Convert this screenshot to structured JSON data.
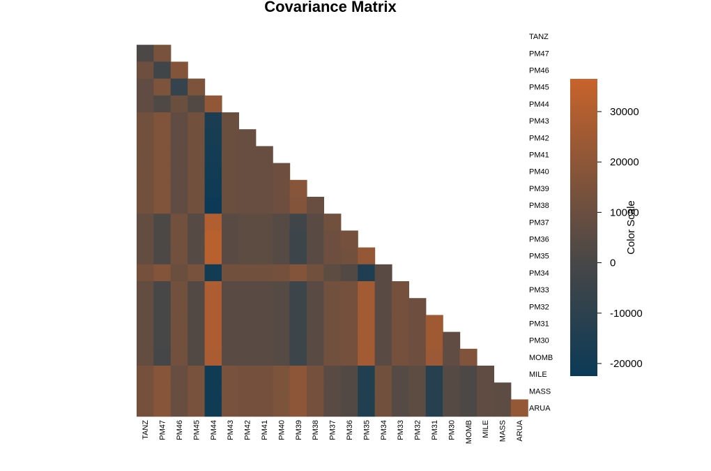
{
  "colors": {
    "low": "#0b3a56",
    "mid": "#474747",
    "high": "#c8632b"
  },
  "chart_data": {
    "type": "heatmap",
    "title": "Covariance Matrix",
    "colorbar_title": "Color Scale",
    "colorbar_range": [
      -22500,
      36500
    ],
    "colorbar_ticks": [
      -20000,
      -10000,
      0,
      10000,
      20000,
      30000
    ],
    "colorbar_tick_labels": [
      "-20000",
      "-10000",
      "0",
      "10000",
      "20000",
      "30000"
    ],
    "row_labels": [
      "TANZ",
      "PM47",
      "PM46",
      "PM45",
      "PM44",
      "PM43",
      "PM42",
      "PM41",
      "PM40",
      "PM39",
      "PM38",
      "PM37",
      "PM36",
      "PM35",
      "PM34",
      "PM33",
      "PM32",
      "PM31",
      "PM30",
      "MOMB",
      "MILE",
      "MASS",
      "ARUA"
    ],
    "column_labels": [
      "TANZ",
      "PM47",
      "PM46",
      "PM45",
      "PM44",
      "PM43",
      "PM42",
      "PM41",
      "PM40",
      "PM39",
      "PM38",
      "PM37",
      "PM36",
      "PM35",
      "PM34",
      "PM33",
      "PM32",
      "PM31",
      "PM30",
      "MOMB",
      "MILE",
      "MASS",
      "ARUA"
    ],
    "values": [
      [
        null,
        null,
        null,
        null,
        null,
        null,
        null,
        null,
        null,
        null,
        null,
        null,
        null,
        null,
        null,
        null,
        null,
        null,
        null,
        null,
        null,
        null,
        null
      ],
      [
        1000,
        14000,
        null,
        null,
        null,
        null,
        null,
        null,
        null,
        null,
        null,
        null,
        null,
        null,
        null,
        null,
        null,
        null,
        null,
        null,
        null,
        null,
        null
      ],
      [
        11000,
        -3000,
        17000,
        null,
        null,
        null,
        null,
        null,
        null,
        null,
        null,
        null,
        null,
        null,
        null,
        null,
        null,
        null,
        null,
        null,
        null,
        null,
        null
      ],
      [
        7000,
        15000,
        -7000,
        15000,
        null,
        null,
        null,
        null,
        null,
        null,
        null,
        null,
        null,
        null,
        null,
        null,
        null,
        null,
        null,
        null,
        null,
        null,
        null
      ],
      [
        7000,
        2000,
        10000,
        3000,
        21000,
        null,
        null,
        null,
        null,
        null,
        null,
        null,
        null,
        null,
        null,
        null,
        null,
        null,
        null,
        null,
        null,
        null,
        null
      ],
      [
        12000,
        16000,
        7000,
        12000,
        -17000,
        10000,
        null,
        null,
        null,
        null,
        null,
        null,
        null,
        null,
        null,
        null,
        null,
        null,
        null,
        null,
        null,
        null,
        null
      ],
      [
        12000,
        16000,
        7000,
        12000,
        -18000,
        10000,
        9000,
        null,
        null,
        null,
        null,
        null,
        null,
        null,
        null,
        null,
        null,
        null,
        null,
        null,
        null,
        null,
        null
      ],
      [
        12000,
        16000,
        7000,
        12000,
        -19000,
        10000,
        9000,
        9000,
        null,
        null,
        null,
        null,
        null,
        null,
        null,
        null,
        null,
        null,
        null,
        null,
        null,
        null,
        null
      ],
      [
        12000,
        16000,
        7000,
        12000,
        -20000,
        10000,
        9000,
        9000,
        11000,
        null,
        null,
        null,
        null,
        null,
        null,
        null,
        null,
        null,
        null,
        null,
        null,
        null,
        null
      ],
      [
        12000,
        16000,
        7000,
        12000,
        -21000,
        10000,
        9000,
        9000,
        11000,
        18000,
        null,
        null,
        null,
        null,
        null,
        null,
        null,
        null,
        null,
        null,
        null,
        null,
        null
      ],
      [
        12000,
        16000,
        7000,
        12000,
        -22000,
        10000,
        9000,
        9000,
        11000,
        17000,
        9000,
        null,
        null,
        null,
        null,
        null,
        null,
        null,
        null,
        null,
        null,
        null,
        null
      ],
      [
        8000,
        1000,
        12000,
        4000,
        30000,
        5000,
        6000,
        6000,
        4000,
        -3000,
        5000,
        12000,
        null,
        null,
        null,
        null,
        null,
        null,
        null,
        null,
        null,
        null,
        null
      ],
      [
        8000,
        1000,
        12000,
        4000,
        32000,
        5000,
        6000,
        6000,
        4000,
        -4000,
        5000,
        11000,
        13000,
        null,
        null,
        null,
        null,
        null,
        null,
        null,
        null,
        null,
        null
      ],
      [
        8000,
        1000,
        12000,
        4000,
        32000,
        5000,
        6000,
        6000,
        4000,
        -4000,
        5000,
        11000,
        12000,
        22000,
        null,
        null,
        null,
        null,
        null,
        null,
        null,
        null,
        null
      ],
      [
        13000,
        17000,
        10000,
        14000,
        -20000,
        12000,
        12000,
        12000,
        13000,
        17000,
        12000,
        6000,
        3000,
        -15000,
        5000,
        null,
        null,
        null,
        null,
        null,
        null,
        null,
        null
      ],
      [
        8000,
        0,
        12000,
        3000,
        29000,
        5000,
        5000,
        5000,
        4000,
        -4000,
        5000,
        12000,
        13000,
        26000,
        5000,
        13000,
        null,
        null,
        null,
        null,
        null,
        null,
        null
      ],
      [
        8000,
        0,
        12000,
        3000,
        29000,
        5000,
        5000,
        5000,
        4000,
        -4000,
        5000,
        12000,
        13000,
        26000,
        5000,
        13000,
        11000,
        null,
        null,
        null,
        null,
        null,
        null
      ],
      [
        8000,
        0,
        12000,
        3000,
        29000,
        5000,
        5000,
        5000,
        4000,
        -4000,
        5000,
        12000,
        13000,
        26000,
        5000,
        13000,
        11000,
        25000,
        null,
        null,
        null,
        null,
        null
      ],
      [
        8000,
        0,
        12000,
        3000,
        29000,
        5000,
        5000,
        5000,
        4000,
        -4000,
        5000,
        12000,
        13000,
        26000,
        5000,
        13000,
        11000,
        25000,
        7000,
        null,
        null,
        null,
        null
      ],
      [
        8000,
        -1000,
        12000,
        3000,
        28000,
        5000,
        5000,
        5000,
        4000,
        -4000,
        5000,
        12000,
        13000,
        26000,
        5000,
        13000,
        11000,
        24000,
        7000,
        16000,
        null,
        null,
        null
      ],
      [
        13000,
        18000,
        9000,
        14000,
        -21000,
        14000,
        13000,
        13000,
        15000,
        20000,
        13000,
        5000,
        3000,
        -14000,
        12000,
        4000,
        6000,
        -12000,
        4000,
        1000,
        7000,
        null,
        null
      ],
      [
        13000,
        18000,
        9000,
        14000,
        -21000,
        14000,
        13000,
        13000,
        15000,
        20000,
        13000,
        5000,
        3000,
        -14000,
        12000,
        4000,
        6000,
        -12000,
        4000,
        1000,
        7000,
        6000,
        null
      ],
      [
        13000,
        18000,
        9000,
        14000,
        -21000,
        14000,
        13000,
        13000,
        15000,
        20000,
        13000,
        5000,
        3000,
        -14000,
        12000,
        4000,
        6000,
        -12000,
        4000,
        1000,
        7000,
        6000,
        22000
      ]
    ]
  }
}
